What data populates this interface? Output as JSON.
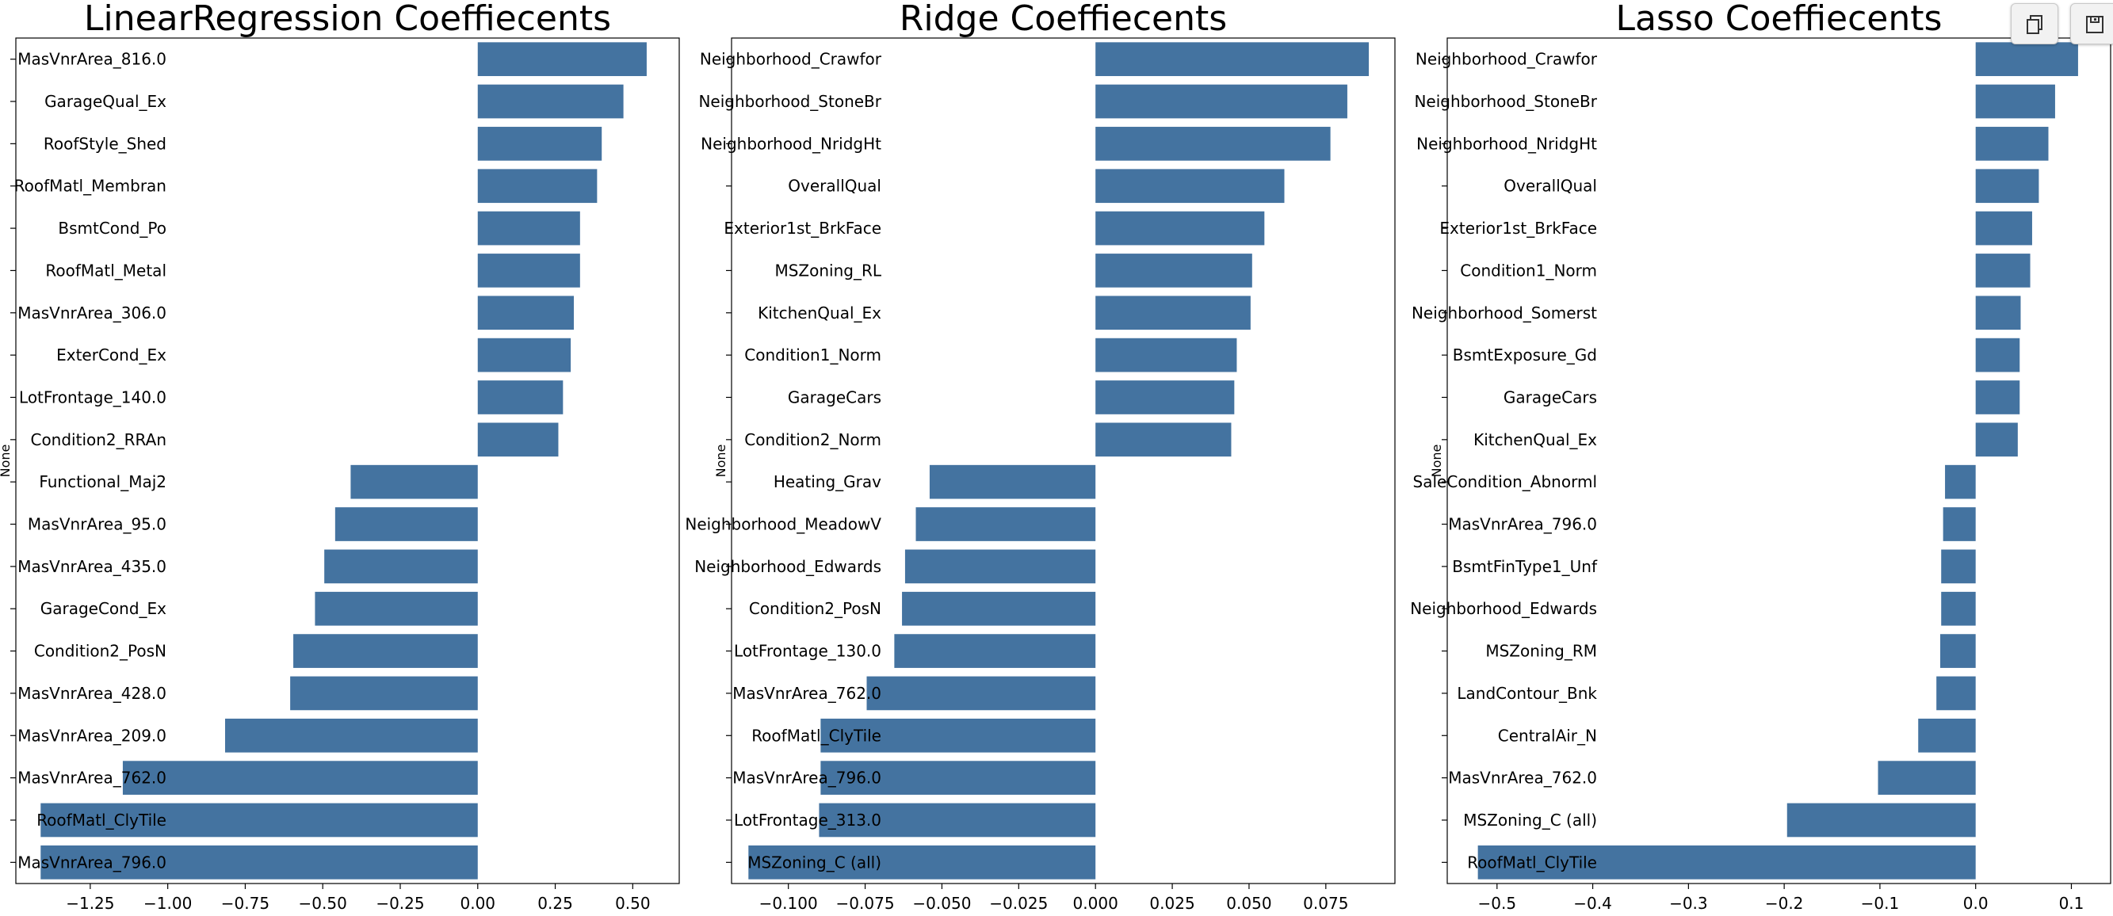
{
  "colors": {
    "bar": "#4473a0",
    "axis": "#000000",
    "toolbar_bg": "#f2f2f2"
  },
  "toolbar": {
    "buttons": [
      {
        "icon": "copy-icon"
      },
      {
        "icon": "save-icon"
      }
    ]
  },
  "chart_data": [
    {
      "type": "bar",
      "orientation": "horizontal",
      "title": "LinearRegression Coeffiecents",
      "ylabel": "None",
      "xlim": [
        -1.49,
        0.65
      ],
      "xticks": [
        -1.25,
        -1.0,
        -0.75,
        -0.5,
        -0.25,
        0.0,
        0.25,
        0.5
      ],
      "xtick_labels": [
        "−1.25",
        "−1.00",
        "−0.75",
        "−0.50",
        "−0.25",
        "0.00",
        "0.25",
        "0.50"
      ],
      "categories": [
        "MasVnrArea_816.0",
        "GarageQual_Ex",
        "RoofStyle_Shed",
        "RoofMatl_Membran",
        "BsmtCond_Po",
        "RoofMatl_Metal",
        "MasVnrArea_306.0",
        "ExterCond_Ex",
        "LotFrontage_140.0",
        "Condition2_RRAn",
        "Functional_Maj2",
        "MasVnrArea_95.0",
        "MasVnrArea_435.0",
        "GarageCond_Ex",
        "Condition2_PosN",
        "MasVnrArea_428.0",
        "MasVnrArea_209.0",
        "MasVnrArea_762.0",
        "RoofMatl_ClyTile",
        "MasVnrArea_796.0"
      ],
      "values": [
        0.545,
        0.47,
        0.4,
        0.385,
        0.33,
        0.33,
        0.31,
        0.3,
        0.275,
        0.26,
        -0.41,
        -0.46,
        -0.495,
        -0.525,
        -0.595,
        -0.605,
        -0.815,
        -1.145,
        -1.41,
        -1.41
      ]
    },
    {
      "type": "bar",
      "orientation": "horizontal",
      "title": "Ridge Coeffiecents",
      "ylabel": "None",
      "xlim": [
        -0.1185,
        0.0975
      ],
      "xticks": [
        -0.1,
        -0.075,
        -0.05,
        -0.025,
        0.0,
        0.025,
        0.05,
        0.075
      ],
      "xtick_labels": [
        "−0.100",
        "−0.075",
        "−0.050",
        "−0.025",
        "0.000",
        "0.025",
        "0.050",
        "0.075"
      ],
      "categories": [
        "Neighborhood_Crawfor",
        "Neighborhood_StoneBr",
        "Neighborhood_NridgHt",
        "OverallQual",
        "Exterior1st_BrkFace",
        "MSZoning_RL",
        "KitchenQual_Ex",
        "Condition1_Norm",
        "GarageCars",
        "Condition2_Norm",
        "Heating_Grav",
        "Neighborhood_MeadowV",
        "Neighborhood_Edwards",
        "Condition2_PosN",
        "LotFrontage_130.0",
        "MasVnrArea_762.0",
        "RoofMatl_ClyTile",
        "MasVnrArea_796.0",
        "LotFrontage_313.0",
        "MSZoning_C (all)"
      ],
      "values": [
        0.089,
        0.082,
        0.0765,
        0.0615,
        0.055,
        0.051,
        0.0505,
        0.046,
        0.0452,
        0.0442,
        -0.054,
        -0.0585,
        -0.062,
        -0.063,
        -0.0655,
        -0.0745,
        -0.0895,
        -0.0895,
        -0.09,
        -0.113
      ]
    },
    {
      "type": "bar",
      "orientation": "horizontal",
      "title": "Lasso Coeffiecents",
      "ylabel": "None",
      "xlim": [
        -0.552,
        0.141
      ],
      "xticks": [
        -0.5,
        -0.4,
        -0.3,
        -0.2,
        -0.1,
        0.0,
        0.1
      ],
      "xtick_labels": [
        "−0.5",
        "−0.4",
        "−0.3",
        "−0.2",
        "−0.1",
        "0.0",
        "0.1"
      ],
      "categories": [
        "Neighborhood_Crawfor",
        "Neighborhood_StoneBr",
        "Neighborhood_NridgHt",
        "OverallQual",
        "Exterior1st_BrkFace",
        "Condition1_Norm",
        "Neighborhood_Somerst",
        "BsmtExposure_Gd",
        "GarageCars",
        "KitchenQual_Ex",
        "SaleCondition_Abnorml",
        "MasVnrArea_796.0",
        "BsmtFinType1_Unf",
        "Neighborhood_Edwards",
        "MSZoning_RM",
        "LandContour_Bnk",
        "CentralAir_N",
        "MasVnrArea_762.0",
        "MSZoning_C (all)",
        "RoofMatl_ClyTile"
      ],
      "values": [
        0.107,
        0.083,
        0.076,
        0.066,
        0.059,
        0.057,
        0.047,
        0.046,
        0.046,
        0.044,
        -0.032,
        -0.034,
        -0.036,
        -0.036,
        -0.037,
        -0.041,
        -0.06,
        -0.102,
        -0.197,
        -0.52
      ]
    }
  ]
}
